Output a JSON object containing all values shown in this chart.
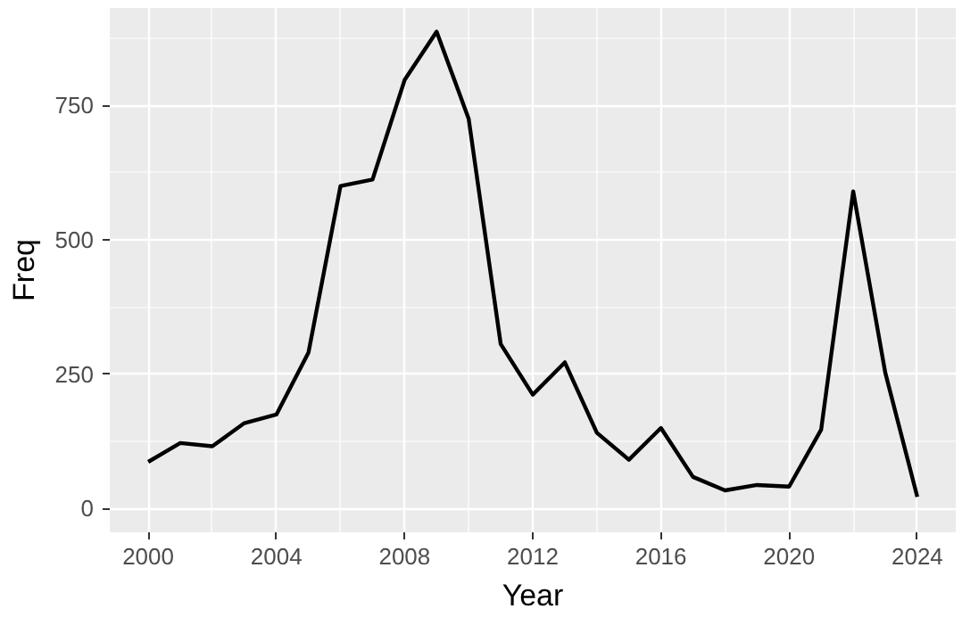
{
  "chart_data": {
    "type": "line",
    "xlabel": "Year",
    "ylabel": "Freq",
    "x": [
      2000,
      2001,
      2002,
      2003,
      2004,
      2005,
      2006,
      2007,
      2008,
      2009,
      2010,
      2011,
      2012,
      2013,
      2014,
      2015,
      2016,
      2017,
      2018,
      2019,
      2020,
      2021,
      2022,
      2023,
      2024
    ],
    "series": [
      {
        "color": "#000000",
        "values": [
          87,
          122,
          116,
          159,
          175,
          290,
          600,
          612,
          797,
          887,
          725,
          306,
          212,
          272,
          141,
          91,
          150,
          59,
          34,
          44,
          41,
          147,
          590,
          253,
          22
        ]
      }
    ],
    "xlim": [
      1998.8,
      2025.2
    ],
    "ylim": [
      -44,
      931
    ],
    "xticks": [
      2000,
      2004,
      2008,
      2012,
      2016,
      2020,
      2024
    ],
    "yticks": [
      0,
      250,
      500,
      750
    ],
    "grid": true,
    "line_style": "solid"
  }
}
